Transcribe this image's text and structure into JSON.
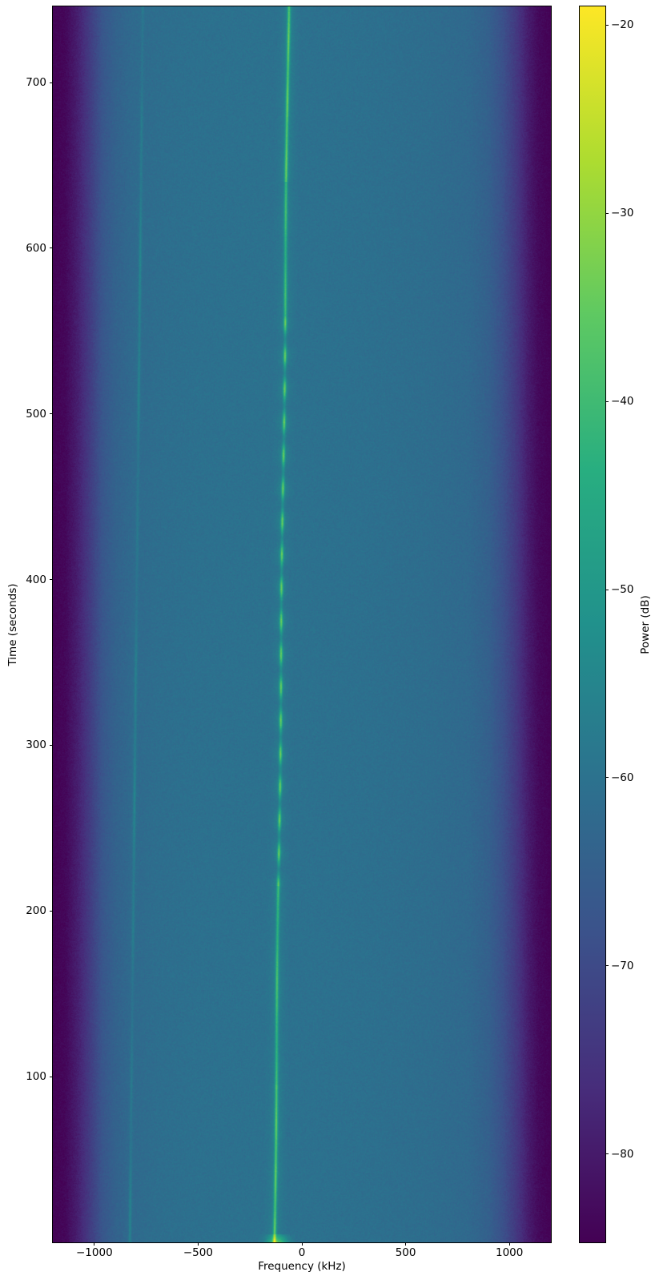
{
  "chart_data": {
    "type": "heatmap",
    "subtype": "spectrogram-waterfall",
    "title": "",
    "xlabel": "Frequency (kHz)",
    "ylabel": "Time (seconds)",
    "colorbar_label": "Power (dB)",
    "xlim": [
      -1200,
      1200
    ],
    "ylim": [
      0,
      746
    ],
    "clim": [
      -84.7,
      -19.0
    ],
    "grid": false,
    "legend": "none",
    "xticks": [
      {
        "value": -1000,
        "label": "−1000"
      },
      {
        "value": -500,
        "label": "−500"
      },
      {
        "value": 0,
        "label": "0"
      },
      {
        "value": 500,
        "label": "500"
      },
      {
        "value": 1000,
        "label": "1000"
      }
    ],
    "yticks": [
      {
        "value": 100,
        "label": "100"
      },
      {
        "value": 200,
        "label": "200"
      },
      {
        "value": 300,
        "label": "300"
      },
      {
        "value": 400,
        "label": "400"
      },
      {
        "value": 500,
        "label": "500"
      },
      {
        "value": 600,
        "label": "600"
      },
      {
        "value": 700,
        "label": "700"
      }
    ],
    "colorbar_ticks": [
      {
        "value": -20,
        "label": "−20"
      },
      {
        "value": -30,
        "label": "−30"
      },
      {
        "value": -40,
        "label": "−40"
      },
      {
        "value": -50,
        "label": "−50"
      },
      {
        "value": -60,
        "label": "−60"
      },
      {
        "value": -70,
        "label": "−70"
      },
      {
        "value": -80,
        "label": "−80"
      }
    ],
    "colormap": {
      "name": "viridis",
      "stops": [
        "#440154",
        "#472d7b",
        "#3b528b",
        "#2c728e",
        "#21918c",
        "#28ae80",
        "#5ec962",
        "#addc30",
        "#fde725"
      ]
    },
    "noise_floor_profile_dB": [
      [
        -1200,
        -84.5
      ],
      [
        -1140,
        -83.5
      ],
      [
        -1080,
        -79.0
      ],
      [
        -1020,
        -73.0
      ],
      [
        -960,
        -67.0
      ],
      [
        -900,
        -64.0
      ],
      [
        -820,
        -62.0
      ],
      [
        -700,
        -61.0
      ],
      [
        -500,
        -60.4
      ],
      [
        -200,
        -60.1
      ],
      [
        0,
        -60.2
      ],
      [
        300,
        -60.5
      ],
      [
        600,
        -61.2
      ],
      [
        800,
        -62.2
      ],
      [
        900,
        -64.5
      ],
      [
        970,
        -68.5
      ],
      [
        1030,
        -73.5
      ],
      [
        1090,
        -79.5
      ],
      [
        1140,
        -83.0
      ],
      [
        1200,
        -84.6
      ]
    ],
    "signals": [
      {
        "name": "main-carrier",
        "freq_kHz_at_t0": -134,
        "freq_kHz_at_tmax": -66,
        "peak_power_dB": -38,
        "faded_power_dB": -54,
        "fading_period_s": 20,
        "fading_region_s": [
          215,
          560
        ],
        "character": "bright narrowband carrier drifting up in frequency; solid and brightest near t=0-90s and t>620s; breaks into periodic dashes mid-record"
      },
      {
        "name": "weak-spur",
        "freq_kHz_at_t0": -831,
        "freq_kHz_at_tmax": -768,
        "peak_power_dB": -56,
        "character": "very faint parallel drifting line"
      }
    ],
    "hotspot": {
      "time_s": [
        0,
        5
      ],
      "freq_kHz": [
        -150,
        -95
      ],
      "peak_power_dB": -38,
      "character": "bright smear at the very bottom edge beside the carrier start"
    }
  }
}
